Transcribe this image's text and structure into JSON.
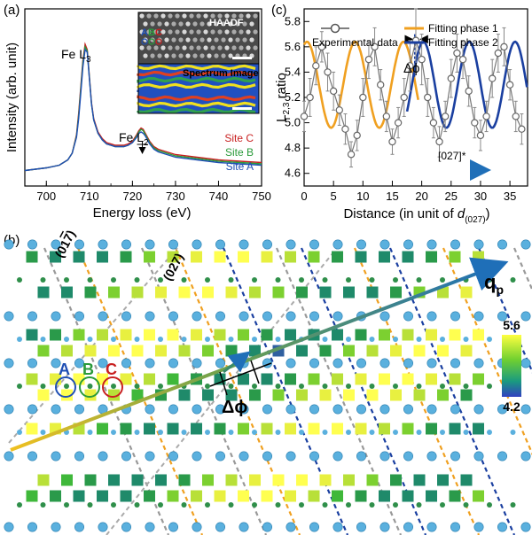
{
  "panel_labels": {
    "a": "(a)",
    "b": "(b)",
    "c": "(c)"
  },
  "colors": {
    "site_a": "#1f4fb4",
    "site_b": "#2a9a3a",
    "site_c": "#c82020",
    "fit1": "#f0a020",
    "fit2": "#1a3fa0",
    "exp": "#555555",
    "atom": "#4aa3d6",
    "atom_small": "#2f8f4a",
    "arrow": "#1f6fb8"
  },
  "panel_a": {
    "xlabel": "Energy loss (eV)",
    "ylabel": "Intensity (arb. unit)",
    "xticks": [
      "700",
      "710",
      "720",
      "730",
      "740",
      "750"
    ],
    "peak1": "Fe L",
    "peak1_sub": "3",
    "peak2": "Fe L",
    "peak2_sub": "2",
    "legend": [
      "Site C",
      "Site B",
      "Site A"
    ],
    "inset_top": "HAADF",
    "inset_bottom": "Spectrum Image",
    "inset_sites": [
      "A",
      "B",
      "C"
    ]
  },
  "panel_b": {
    "dir1": "(01",
    "dir1_bar": "7",
    "dir1_end": ")",
    "dir2": "(027)",
    "site_labels": [
      "A",
      "B",
      "C"
    ],
    "delta_phi": "Δϕ",
    "q_label": "q",
    "q_sub": "p",
    "colorbar_max": "5.6",
    "colorbar_min": "4.2"
  },
  "chart_data": [
    {
      "type": "line",
      "panel": "a",
      "xlabel": "Energy loss (eV)",
      "ylabel": "Intensity (arb. unit)",
      "xlim": [
        695,
        750
      ],
      "series": [
        {
          "name": "Site C",
          "x": [
            695,
            700,
            703,
            705,
            706,
            707,
            707.5,
            708,
            708.5,
            709,
            709.5,
            710,
            710.5,
            711,
            712,
            713,
            714,
            716,
            718,
            719,
            720,
            721,
            721.5,
            722,
            722.5,
            723,
            724,
            725,
            726,
            728,
            730,
            735,
            740,
            745,
            750
          ],
          "y": [
            0.05,
            0.07,
            0.09,
            0.13,
            0.18,
            0.32,
            0.48,
            0.68,
            0.88,
            1.0,
            0.96,
            0.76,
            0.56,
            0.44,
            0.34,
            0.29,
            0.26,
            0.24,
            0.24,
            0.25,
            0.27,
            0.32,
            0.35,
            0.37,
            0.36,
            0.33,
            0.27,
            0.23,
            0.21,
            0.19,
            0.17,
            0.15,
            0.13,
            0.12,
            0.11
          ]
        },
        {
          "name": "Site B",
          "x": [
            695,
            700,
            703,
            705,
            706,
            707,
            707.5,
            708,
            708.5,
            709,
            709.5,
            710,
            710.5,
            711,
            712,
            713,
            714,
            716,
            718,
            719,
            720,
            721,
            721.5,
            722,
            722.5,
            723,
            724,
            725,
            726,
            728,
            730,
            735,
            740,
            745,
            750
          ],
          "y": [
            0.05,
            0.07,
            0.09,
            0.13,
            0.18,
            0.31,
            0.46,
            0.66,
            0.86,
            0.98,
            0.95,
            0.75,
            0.55,
            0.43,
            0.33,
            0.28,
            0.25,
            0.23,
            0.23,
            0.24,
            0.26,
            0.31,
            0.34,
            0.36,
            0.35,
            0.32,
            0.26,
            0.22,
            0.2,
            0.18,
            0.16,
            0.14,
            0.12,
            0.11,
            0.1
          ]
        },
        {
          "name": "Site A",
          "x": [
            695,
            700,
            703,
            705,
            706,
            707,
            707.5,
            708,
            708.5,
            709,
            709.5,
            710,
            710.5,
            711,
            712,
            713,
            714,
            716,
            718,
            719,
            720,
            721,
            721.5,
            722,
            722.5,
            723,
            724,
            725,
            726,
            728,
            730,
            735,
            740,
            745,
            750
          ],
          "y": [
            0.05,
            0.07,
            0.09,
            0.13,
            0.18,
            0.3,
            0.44,
            0.63,
            0.83,
            0.96,
            0.94,
            0.74,
            0.55,
            0.43,
            0.33,
            0.28,
            0.25,
            0.23,
            0.23,
            0.24,
            0.26,
            0.3,
            0.33,
            0.34,
            0.33,
            0.31,
            0.25,
            0.21,
            0.19,
            0.17,
            0.15,
            0.13,
            0.11,
            0.1,
            0.09
          ]
        }
      ]
    },
    {
      "type": "line",
      "panel": "c",
      "xlabel": "Distance (in unit of d(027))",
      "ylabel": "L2,3 ratio",
      "xlim": [
        0,
        38
      ],
      "ylim": [
        4.5,
        5.9
      ],
      "xticks": [
        0,
        5,
        10,
        15,
        20,
        25,
        30,
        35
      ],
      "yticks": [
        4.6,
        4.8,
        5.0,
        5.2,
        5.4,
        5.6,
        5.8
      ],
      "legend": [
        "Experimental data",
        "Fitting phase 1",
        "Fitting phase 2"
      ],
      "annotation_phase": "Δϕ",
      "annotation_dir": "[027]*",
      "experimental": {
        "x": [
          0,
          1,
          2,
          3,
          4,
          5,
          6,
          7,
          8,
          9,
          10,
          11,
          12,
          13,
          14,
          15,
          16,
          17,
          18,
          19,
          20,
          21,
          22,
          23,
          24,
          25,
          26,
          27,
          28,
          29,
          30,
          31,
          32,
          33,
          34,
          35,
          36,
          37
        ],
        "y": [
          5.05,
          5.2,
          5.45,
          5.6,
          5.4,
          5.25,
          5.1,
          4.95,
          4.75,
          4.9,
          5.2,
          5.5,
          5.6,
          5.3,
          5.05,
          4.85,
          5.0,
          5.2,
          5.45,
          5.65,
          5.5,
          5.2,
          5.0,
          4.85,
          5.05,
          5.35,
          5.55,
          5.5,
          5.25,
          5.0,
          4.9,
          5.05,
          5.35,
          5.55,
          5.6,
          5.3,
          5.05,
          4.95
        ],
        "err": [
          0.12,
          0.15,
          0.15,
          0.12,
          0.15,
          0.15,
          0.12,
          0.12,
          0.1,
          0.12,
          0.15,
          0.15,
          0.15,
          0.12,
          0.12,
          0.1,
          0.12,
          0.15,
          0.2,
          0.25,
          0.2,
          0.15,
          0.12,
          0.12,
          0.12,
          0.15,
          0.15,
          0.15,
          0.12,
          0.12,
          0.12,
          0.12,
          0.15,
          0.15,
          0.15,
          0.12,
          0.12,
          0.12
        ]
      },
      "fit1": {
        "name": "Fitting phase 1",
        "mean": 5.3,
        "amp": 0.34,
        "period": 8.2,
        "phase": 1.2,
        "x_range": [
          0,
          19.5
        ]
      },
      "fit2": {
        "name": "Fitting phase 2",
        "mean": 5.3,
        "amp": 0.34,
        "period": 7.8,
        "phase": -2.2,
        "x_range": [
          17.5,
          38
        ]
      }
    }
  ]
}
